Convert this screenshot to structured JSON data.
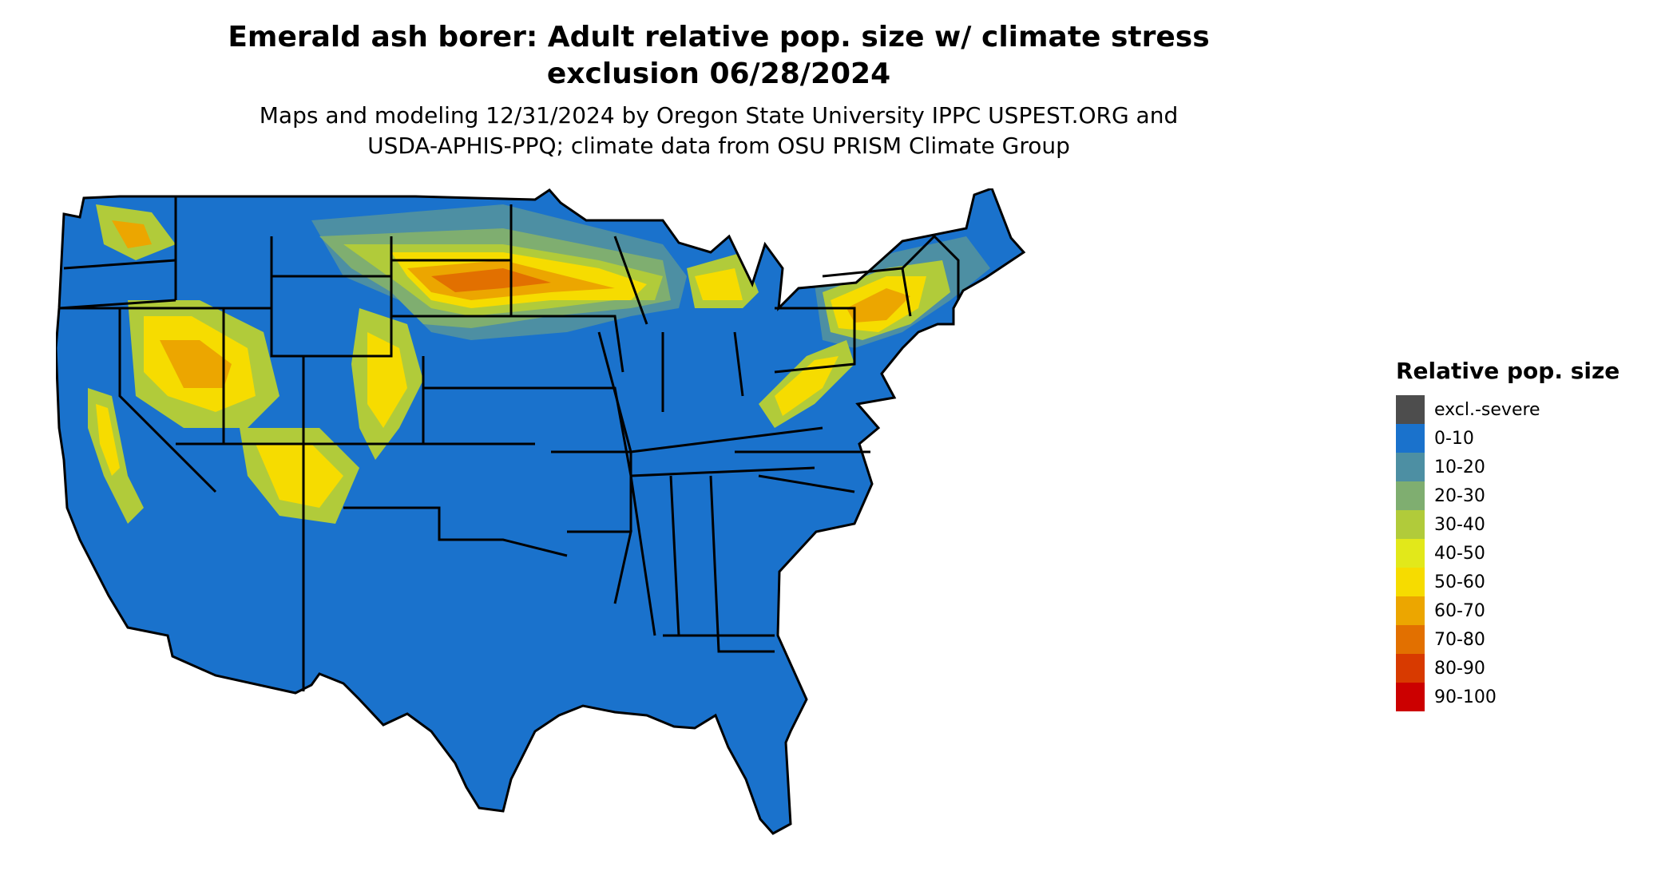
{
  "title_line1": "Emerald ash borer: Adult relative pop. size w/ climate stress",
  "title_line2": "exclusion 06/28/2024",
  "subtitle_line1": "Maps and modeling 12/31/2024 by Oregon State University IPPC USPEST.ORG and",
  "subtitle_line2": "USDA-APHIS-PPQ; climate data from OSU PRISM Climate Group",
  "legend": {
    "title": "Relative pop. size",
    "items": [
      {
        "label": "excl.-severe",
        "color": "#4d4d4d"
      },
      {
        "label": "0-10",
        "color": "#1a72cc"
      },
      {
        "label": "10-20",
        "color": "#4d8fa3"
      },
      {
        "label": "20-30",
        "color": "#7fae70"
      },
      {
        "label": "30-40",
        "color": "#b1cb3a"
      },
      {
        "label": "40-50",
        "color": "#e2e81a"
      },
      {
        "label": "50-60",
        "color": "#f6dc00"
      },
      {
        "label": "60-70",
        "color": "#eca600"
      },
      {
        "label": "70-80",
        "color": "#e27000"
      },
      {
        "label": "80-90",
        "color": "#d83a00"
      },
      {
        "label": "90-100",
        "color": "#cc0000"
      }
    ]
  }
}
